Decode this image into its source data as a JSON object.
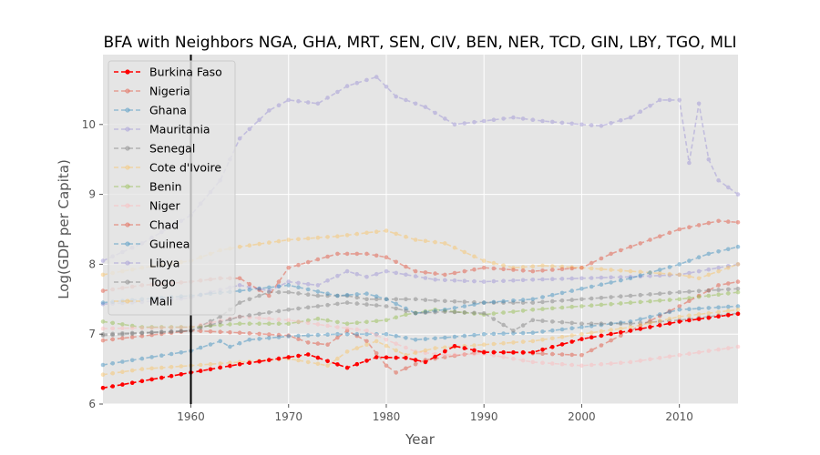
{
  "chart_data": {
    "type": "line",
    "title": "BFA with Neighbors NGA, GHA, MRT, SEN, CIV, BEN, NER, TCD, GIN, LBY, TGO, MLI",
    "xlabel": "Year",
    "ylabel": "Log(GDP per Capita)",
    "xlim": [
      1951,
      2016
    ],
    "ylim": [
      6,
      11
    ],
    "xticks": [
      1960,
      1970,
      1980,
      1990,
      2000,
      2010
    ],
    "yticks": [
      6,
      7,
      8,
      9,
      10
    ],
    "grid": true,
    "legend_position": "top-left",
    "vline_x": 1960,
    "series": [
      {
        "name": "Burkina Faso",
        "color": "#ff0000",
        "highlight": true,
        "keypoints": [
          [
            1951,
            6.23
          ],
          [
            1960,
            6.45
          ],
          [
            1965,
            6.57
          ],
          [
            1970,
            6.67
          ],
          [
            1972,
            6.71
          ],
          [
            1976,
            6.52
          ],
          [
            1979,
            6.67
          ],
          [
            1982,
            6.66
          ],
          [
            1984,
            6.6
          ],
          [
            1987,
            6.83
          ],
          [
            1990,
            6.74
          ],
          [
            1995,
            6.74
          ],
          [
            2000,
            6.93
          ],
          [
            2005,
            7.05
          ],
          [
            2010,
            7.18
          ],
          [
            2016,
            7.29
          ]
        ]
      },
      {
        "name": "Nigeria",
        "color": "#e24a33",
        "keypoints": [
          [
            1951,
            6.91
          ],
          [
            1960,
            7.05
          ],
          [
            1965,
            7.02
          ],
          [
            1970,
            6.98
          ],
          [
            1972,
            6.88
          ],
          [
            1974,
            6.85
          ],
          [
            1976,
            7.05
          ],
          [
            1978,
            6.9
          ],
          [
            1980,
            6.55
          ],
          [
            1981,
            6.45
          ],
          [
            1984,
            6.63
          ],
          [
            1990,
            6.75
          ],
          [
            2000,
            6.7
          ],
          [
            2005,
            7.05
          ],
          [
            2010,
            7.4
          ],
          [
            2014,
            7.7
          ],
          [
            2016,
            7.75
          ]
        ]
      },
      {
        "name": "Ghana",
        "color": "#348abd",
        "keypoints": [
          [
            1951,
            6.56
          ],
          [
            1955,
            6.65
          ],
          [
            1960,
            6.76
          ],
          [
            1963,
            6.9
          ],
          [
            1964,
            6.82
          ],
          [
            1966,
            6.92
          ],
          [
            1970,
            6.97
          ],
          [
            1975,
            7.0
          ],
          [
            1980,
            7.0
          ],
          [
            1983,
            6.92
          ],
          [
            1986,
            6.95
          ],
          [
            1990,
            7.0
          ],
          [
            1995,
            7.02
          ],
          [
            2000,
            7.1
          ],
          [
            2005,
            7.18
          ],
          [
            2010,
            7.35
          ],
          [
            2016,
            7.4
          ]
        ]
      },
      {
        "name": "Mauritania",
        "color": "#988ed5",
        "keypoints": [
          [
            1951,
            7.43
          ],
          [
            1955,
            7.46
          ],
          [
            1960,
            7.52
          ],
          [
            1962,
            7.6
          ],
          [
            1965,
            7.7
          ],
          [
            1968,
            7.62
          ],
          [
            1970,
            7.75
          ],
          [
            1973,
            7.7
          ],
          [
            1976,
            7.9
          ],
          [
            1978,
            7.82
          ],
          [
            1980,
            7.9
          ],
          [
            1985,
            7.78
          ],
          [
            1990,
            7.75
          ],
          [
            1995,
            7.78
          ],
          [
            2000,
            7.8
          ],
          [
            2005,
            7.82
          ],
          [
            2010,
            7.85
          ],
          [
            2014,
            7.95
          ],
          [
            2016,
            8.0
          ]
        ]
      },
      {
        "name": "Senegal",
        "color": "#777777",
        "keypoints": [
          [
            1951,
            7.0
          ],
          [
            1960,
            7.05
          ],
          [
            1963,
            7.25
          ],
          [
            1965,
            7.45
          ],
          [
            1968,
            7.6
          ],
          [
            1970,
            7.6
          ],
          [
            1973,
            7.55
          ],
          [
            1976,
            7.55
          ],
          [
            1978,
            7.5
          ],
          [
            1980,
            7.5
          ],
          [
            1983,
            7.5
          ],
          [
            1985,
            7.48
          ],
          [
            1990,
            7.45
          ],
          [
            1995,
            7.45
          ],
          [
            2000,
            7.5
          ],
          [
            2005,
            7.55
          ],
          [
            2010,
            7.6
          ],
          [
            2016,
            7.65
          ]
        ]
      },
      {
        "name": "Cote d'Ivoire",
        "color": "#fbc15e",
        "keypoints": [
          [
            1951,
            7.85
          ],
          [
            1955,
            7.95
          ],
          [
            1960,
            8.05
          ],
          [
            1963,
            8.2
          ],
          [
            1965,
            8.25
          ],
          [
            1970,
            8.35
          ],
          [
            1975,
            8.4
          ],
          [
            1978,
            8.45
          ],
          [
            1980,
            8.48
          ],
          [
            1983,
            8.35
          ],
          [
            1986,
            8.3
          ],
          [
            1990,
            8.05
          ],
          [
            1993,
            7.95
          ],
          [
            1996,
            7.98
          ],
          [
            2000,
            7.95
          ],
          [
            2005,
            7.9
          ],
          [
            2010,
            7.85
          ],
          [
            2012,
            7.8
          ],
          [
            2016,
            8.0
          ]
        ]
      },
      {
        "name": "Benin",
        "color": "#8eba42",
        "keypoints": [
          [
            1951,
            7.18
          ],
          [
            1955,
            7.1
          ],
          [
            1960,
            7.1
          ],
          [
            1965,
            7.15
          ],
          [
            1970,
            7.15
          ],
          [
            1973,
            7.22
          ],
          [
            1976,
            7.15
          ],
          [
            1980,
            7.2
          ],
          [
            1982,
            7.28
          ],
          [
            1985,
            7.35
          ],
          [
            1990,
            7.28
          ],
          [
            1995,
            7.35
          ],
          [
            2000,
            7.4
          ],
          [
            2005,
            7.45
          ],
          [
            2010,
            7.5
          ],
          [
            2016,
            7.6
          ]
        ]
      },
      {
        "name": "Niger",
        "color": "#ffb5b8",
        "keypoints": [
          [
            1951,
            7.08
          ],
          [
            1960,
            7.1
          ],
          [
            1965,
            7.25
          ],
          [
            1970,
            7.2
          ],
          [
            1975,
            7.1
          ],
          [
            1978,
            7.05
          ],
          [
            1980,
            6.92
          ],
          [
            1983,
            6.75
          ],
          [
            1986,
            6.7
          ],
          [
            1990,
            6.72
          ],
          [
            1995,
            6.6
          ],
          [
            2000,
            6.55
          ],
          [
            2005,
            6.6
          ],
          [
            2010,
            6.7
          ],
          [
            2016,
            6.82
          ]
        ]
      },
      {
        "name": "Chad",
        "color": "#e24a33",
        "keypoints": [
          [
            1951,
            7.62
          ],
          [
            1955,
            7.7
          ],
          [
            1960,
            7.75
          ],
          [
            1963,
            7.8
          ],
          [
            1965,
            7.8
          ],
          [
            1968,
            7.55
          ],
          [
            1970,
            7.95
          ],
          [
            1975,
            8.15
          ],
          [
            1978,
            8.15
          ],
          [
            1980,
            8.1
          ],
          [
            1983,
            7.9
          ],
          [
            1986,
            7.85
          ],
          [
            1990,
            7.95
          ],
          [
            1995,
            7.9
          ],
          [
            2000,
            7.95
          ],
          [
            2003,
            8.15
          ],
          [
            2007,
            8.35
          ],
          [
            2010,
            8.5
          ],
          [
            2014,
            8.62
          ],
          [
            2016,
            8.6
          ]
        ]
      },
      {
        "name": "Guinea",
        "color": "#348abd",
        "keypoints": [
          [
            1951,
            7.45
          ],
          [
            1955,
            7.5
          ],
          [
            1960,
            7.55
          ],
          [
            1965,
            7.62
          ],
          [
            1970,
            7.7
          ],
          [
            1975,
            7.55
          ],
          [
            1978,
            7.58
          ],
          [
            1980,
            7.5
          ],
          [
            1983,
            7.3
          ],
          [
            1986,
            7.35
          ],
          [
            1990,
            7.45
          ],
          [
            1995,
            7.5
          ],
          [
            2000,
            7.65
          ],
          [
            2005,
            7.8
          ],
          [
            2010,
            8.0
          ],
          [
            2013,
            8.15
          ],
          [
            2016,
            8.25
          ]
        ]
      },
      {
        "name": "Libya",
        "color": "#988ed5",
        "keypoints": [
          [
            1951,
            8.05
          ],
          [
            1955,
            8.3
          ],
          [
            1960,
            8.7
          ],
          [
            1963,
            9.2
          ],
          [
            1965,
            9.8
          ],
          [
            1968,
            10.2
          ],
          [
            1970,
            10.35
          ],
          [
            1973,
            10.3
          ],
          [
            1976,
            10.55
          ],
          [
            1979,
            10.68
          ],
          [
            1981,
            10.4
          ],
          [
            1984,
            10.25
          ],
          [
            1987,
            10.0
          ],
          [
            1990,
            10.05
          ],
          [
            1993,
            10.1
          ],
          [
            1996,
            10.05
          ],
          [
            2000,
            10.0
          ],
          [
            2002,
            9.98
          ],
          [
            2005,
            10.1
          ],
          [
            2008,
            10.35
          ],
          [
            2010,
            10.35
          ],
          [
            2011,
            9.45
          ],
          [
            2012,
            10.3
          ],
          [
            2013,
            9.5
          ],
          [
            2014,
            9.2
          ],
          [
            2016,
            9.0
          ]
        ]
      },
      {
        "name": "Togo",
        "color": "#777777",
        "keypoints": [
          [
            1951,
            6.98
          ],
          [
            1960,
            7.05
          ],
          [
            1965,
            7.25
          ],
          [
            1970,
            7.35
          ],
          [
            1973,
            7.4
          ],
          [
            1976,
            7.45
          ],
          [
            1980,
            7.4
          ],
          [
            1983,
            7.3
          ],
          [
            1986,
            7.32
          ],
          [
            1990,
            7.3
          ],
          [
            1993,
            7.05
          ],
          [
            1995,
            7.2
          ],
          [
            2000,
            7.15
          ],
          [
            2005,
            7.15
          ],
          [
            2010,
            7.2
          ],
          [
            2016,
            7.3
          ]
        ]
      },
      {
        "name": "Mali",
        "color": "#fbc15e",
        "keypoints": [
          [
            1951,
            6.42
          ],
          [
            1955,
            6.5
          ],
          [
            1960,
            6.55
          ],
          [
            1965,
            6.6
          ],
          [
            1970,
            6.65
          ],
          [
            1974,
            6.55
          ],
          [
            1976,
            6.75
          ],
          [
            1979,
            6.9
          ],
          [
            1982,
            6.7
          ],
          [
            1985,
            6.8
          ],
          [
            1990,
            6.85
          ],
          [
            1995,
            6.9
          ],
          [
            2000,
            7.0
          ],
          [
            2005,
            7.1
          ],
          [
            2010,
            7.25
          ],
          [
            2016,
            7.35
          ]
        ]
      }
    ]
  }
}
